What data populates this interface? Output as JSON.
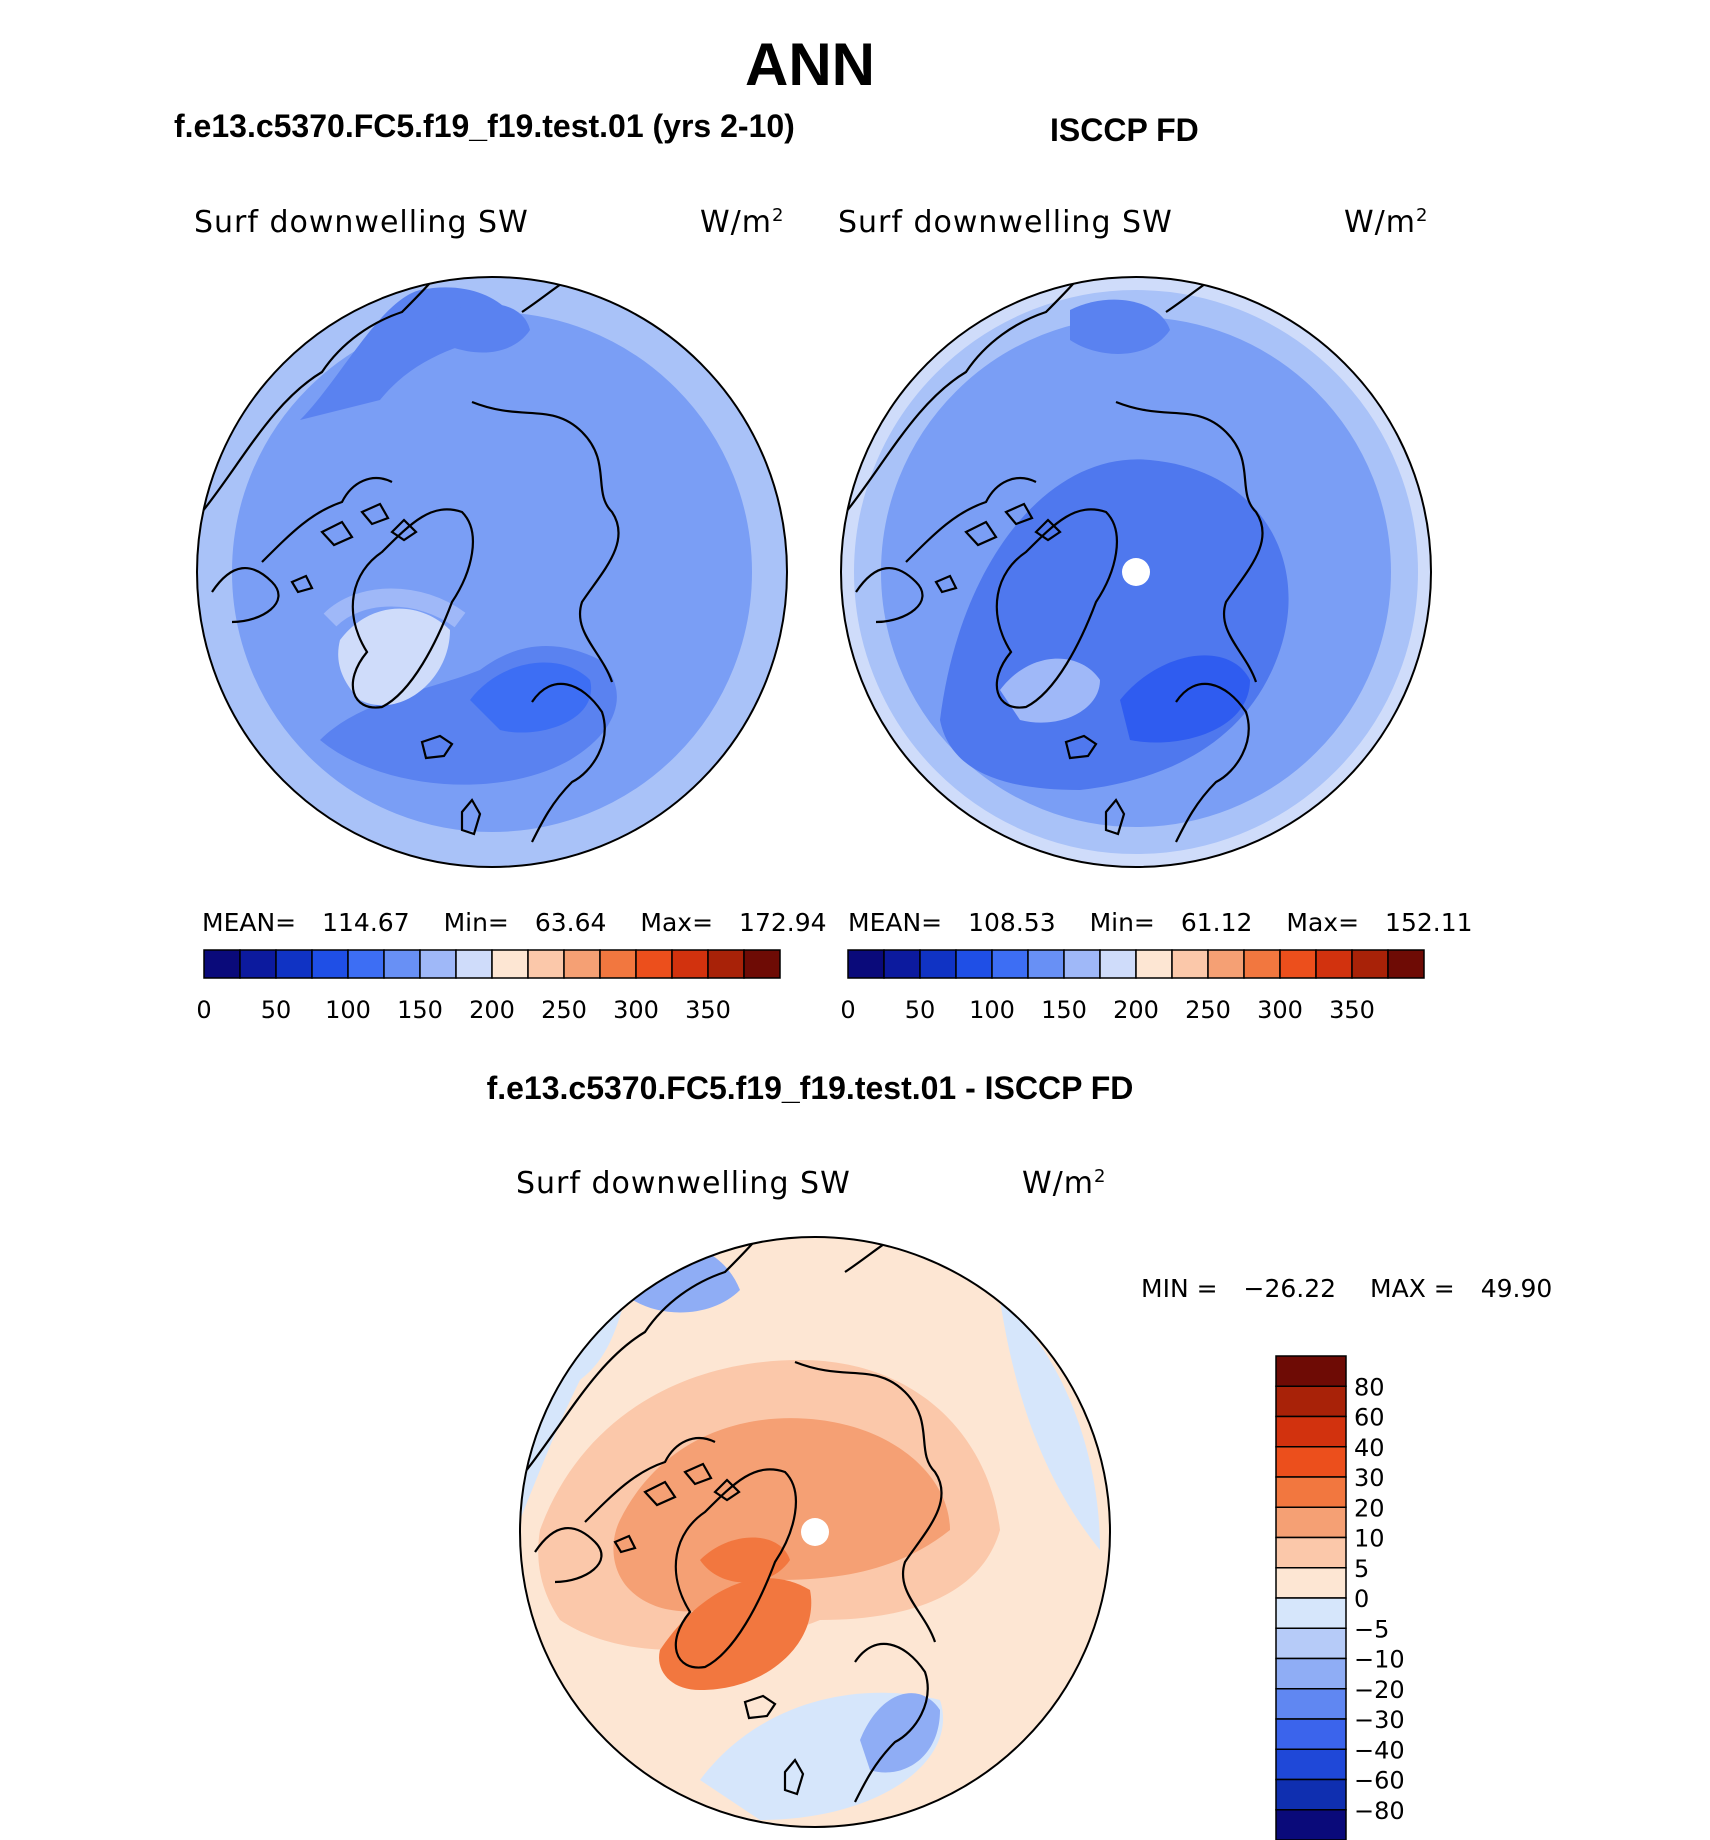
{
  "figure": {
    "title": "ANN",
    "left_title": "f.e13.c5370.FC5.f19_f19.test.01 (yrs 2-10)",
    "right_title": "ISCCP FD",
    "diff_title": "f.e13.c5370.FC5.f19_f19.test.01 - ISCCP FD"
  },
  "panels": {
    "model": {
      "variable": "Surf downwelling SW",
      "units": "W/m",
      "units_sup": "2",
      "mean_label": "MEAN=",
      "mean": "114.67",
      "min_label": "Min=",
      "min": "63.64",
      "max_label": "Max=",
      "max": "172.94"
    },
    "obs": {
      "variable": "Surf downwelling SW",
      "units": "W/m",
      "units_sup": "2",
      "mean_label": "MEAN=",
      "mean": "108.53",
      "min_label": "Min=",
      "min": "61.12",
      "max_label": "Max=",
      "max": "152.11"
    },
    "diff": {
      "variable": "Surf downwelling SW",
      "units": "W/m",
      "units_sup": "2",
      "min_label": "MIN =",
      "min": "−26.22",
      "max_label": "MAX =",
      "max": "49.90"
    }
  },
  "colorbars": {
    "absolute": {
      "colors": [
        "#0a0a7a",
        "#0c1a9e",
        "#1033c4",
        "#1f4fe6",
        "#3d6ef4",
        "#6890f5",
        "#9fb8f8",
        "#cfdcfa",
        "#fde6d3",
        "#fbc8aa",
        "#f5a074",
        "#f2773f",
        "#ec4f1c",
        "#d2320e",
        "#a82208",
        "#6e0b05"
      ],
      "tick_labels": [
        "0",
        "50",
        "100",
        "150",
        "200",
        "250",
        "300",
        "350"
      ]
    },
    "difference": {
      "colors": [
        "#6e0b05",
        "#a82208",
        "#d2320e",
        "#ec4f1c",
        "#f2773f",
        "#f5a074",
        "#fbc8aa",
        "#fde6d3",
        "#d6e6fb",
        "#b6cbf8",
        "#8fadf5",
        "#6087f2",
        "#3b64ec",
        "#1f48d8",
        "#0f2fb0",
        "#0a0a7a"
      ],
      "tick_labels": [
        "80",
        "60",
        "40",
        "30",
        "20",
        "10",
        "5",
        "0",
        "−5",
        "−10",
        "−20",
        "−30",
        "−40",
        "−60",
        "−80"
      ]
    }
  },
  "colors": {
    "model_base": "#7a9ef5",
    "obs_base": "#4f78ee",
    "diff_base": "#fde6d3",
    "pole_hole": "#ffffff"
  }
}
